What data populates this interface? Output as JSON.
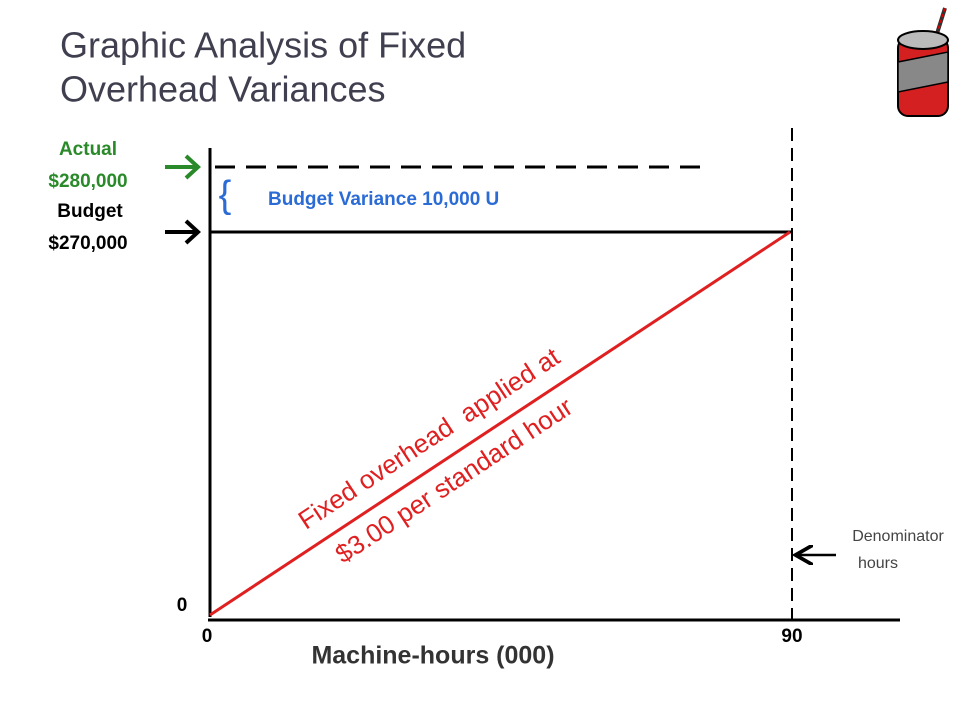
{
  "title": [
    "Graphic Analysis of Fixed",
    "Overhead Variances"
  ],
  "actual": {
    "label": "Actual",
    "amount": "$280,000"
  },
  "budget": {
    "label": "Budget",
    "amount": "$270,000"
  },
  "variance": "Budget Variance 10,000 U",
  "applied_line": [
    "Fixed overhead  applied at",
    "$3.00 per standard hour"
  ],
  "y_origin": "0",
  "x_ticks": [
    "0",
    "90"
  ],
  "x_axis_label": "Machine-hours (000)",
  "denominator": [
    "Denominator",
    "hours"
  ]
}
